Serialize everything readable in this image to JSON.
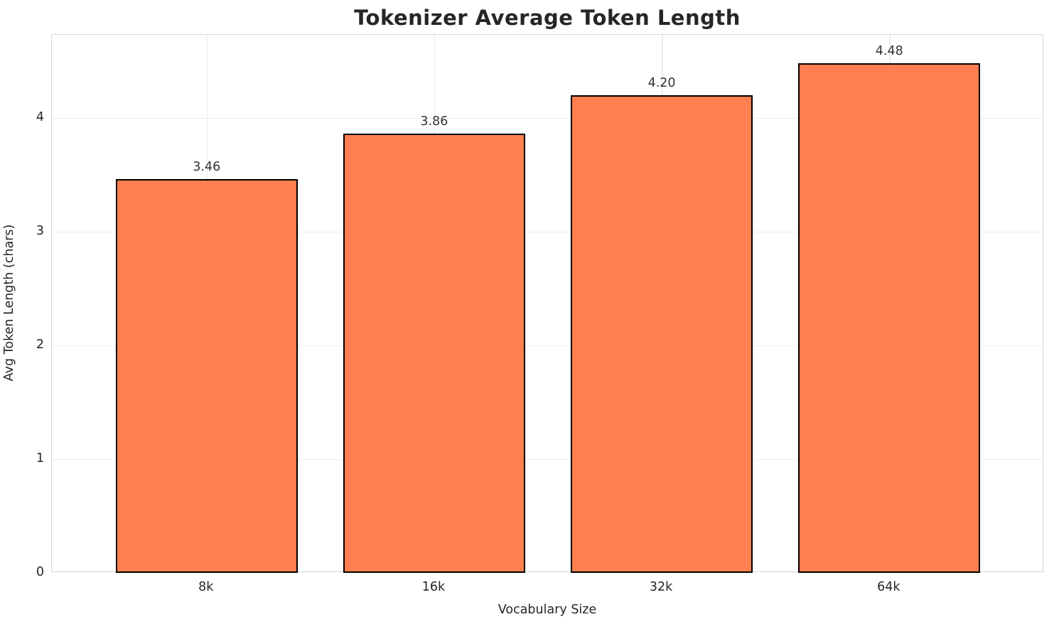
{
  "chart_data": {
    "type": "bar",
    "title": "Tokenizer Average Token Length",
    "xlabel": "Vocabulary Size",
    "ylabel": "Avg Token Length (chars)",
    "categories": [
      "8k",
      "16k",
      "32k",
      "64k"
    ],
    "values": [
      3.46,
      3.86,
      4.2,
      4.48
    ],
    "value_labels": [
      "3.46",
      "3.86",
      "4.20",
      "4.48"
    ],
    "yticks": [
      0,
      1,
      2,
      3,
      4
    ],
    "ytick_labels": [
      "0",
      "1",
      "2",
      "3",
      "4"
    ],
    "ylim": [
      0,
      4.73
    ],
    "grid": true,
    "legend": false,
    "bar_color": "#FF7F50",
    "bar_edge_color": "#000000",
    "grid_color": "#ececec",
    "spine_color": "#d4d4d4",
    "text_color": "#262626",
    "background_color": "#ffffff"
  }
}
